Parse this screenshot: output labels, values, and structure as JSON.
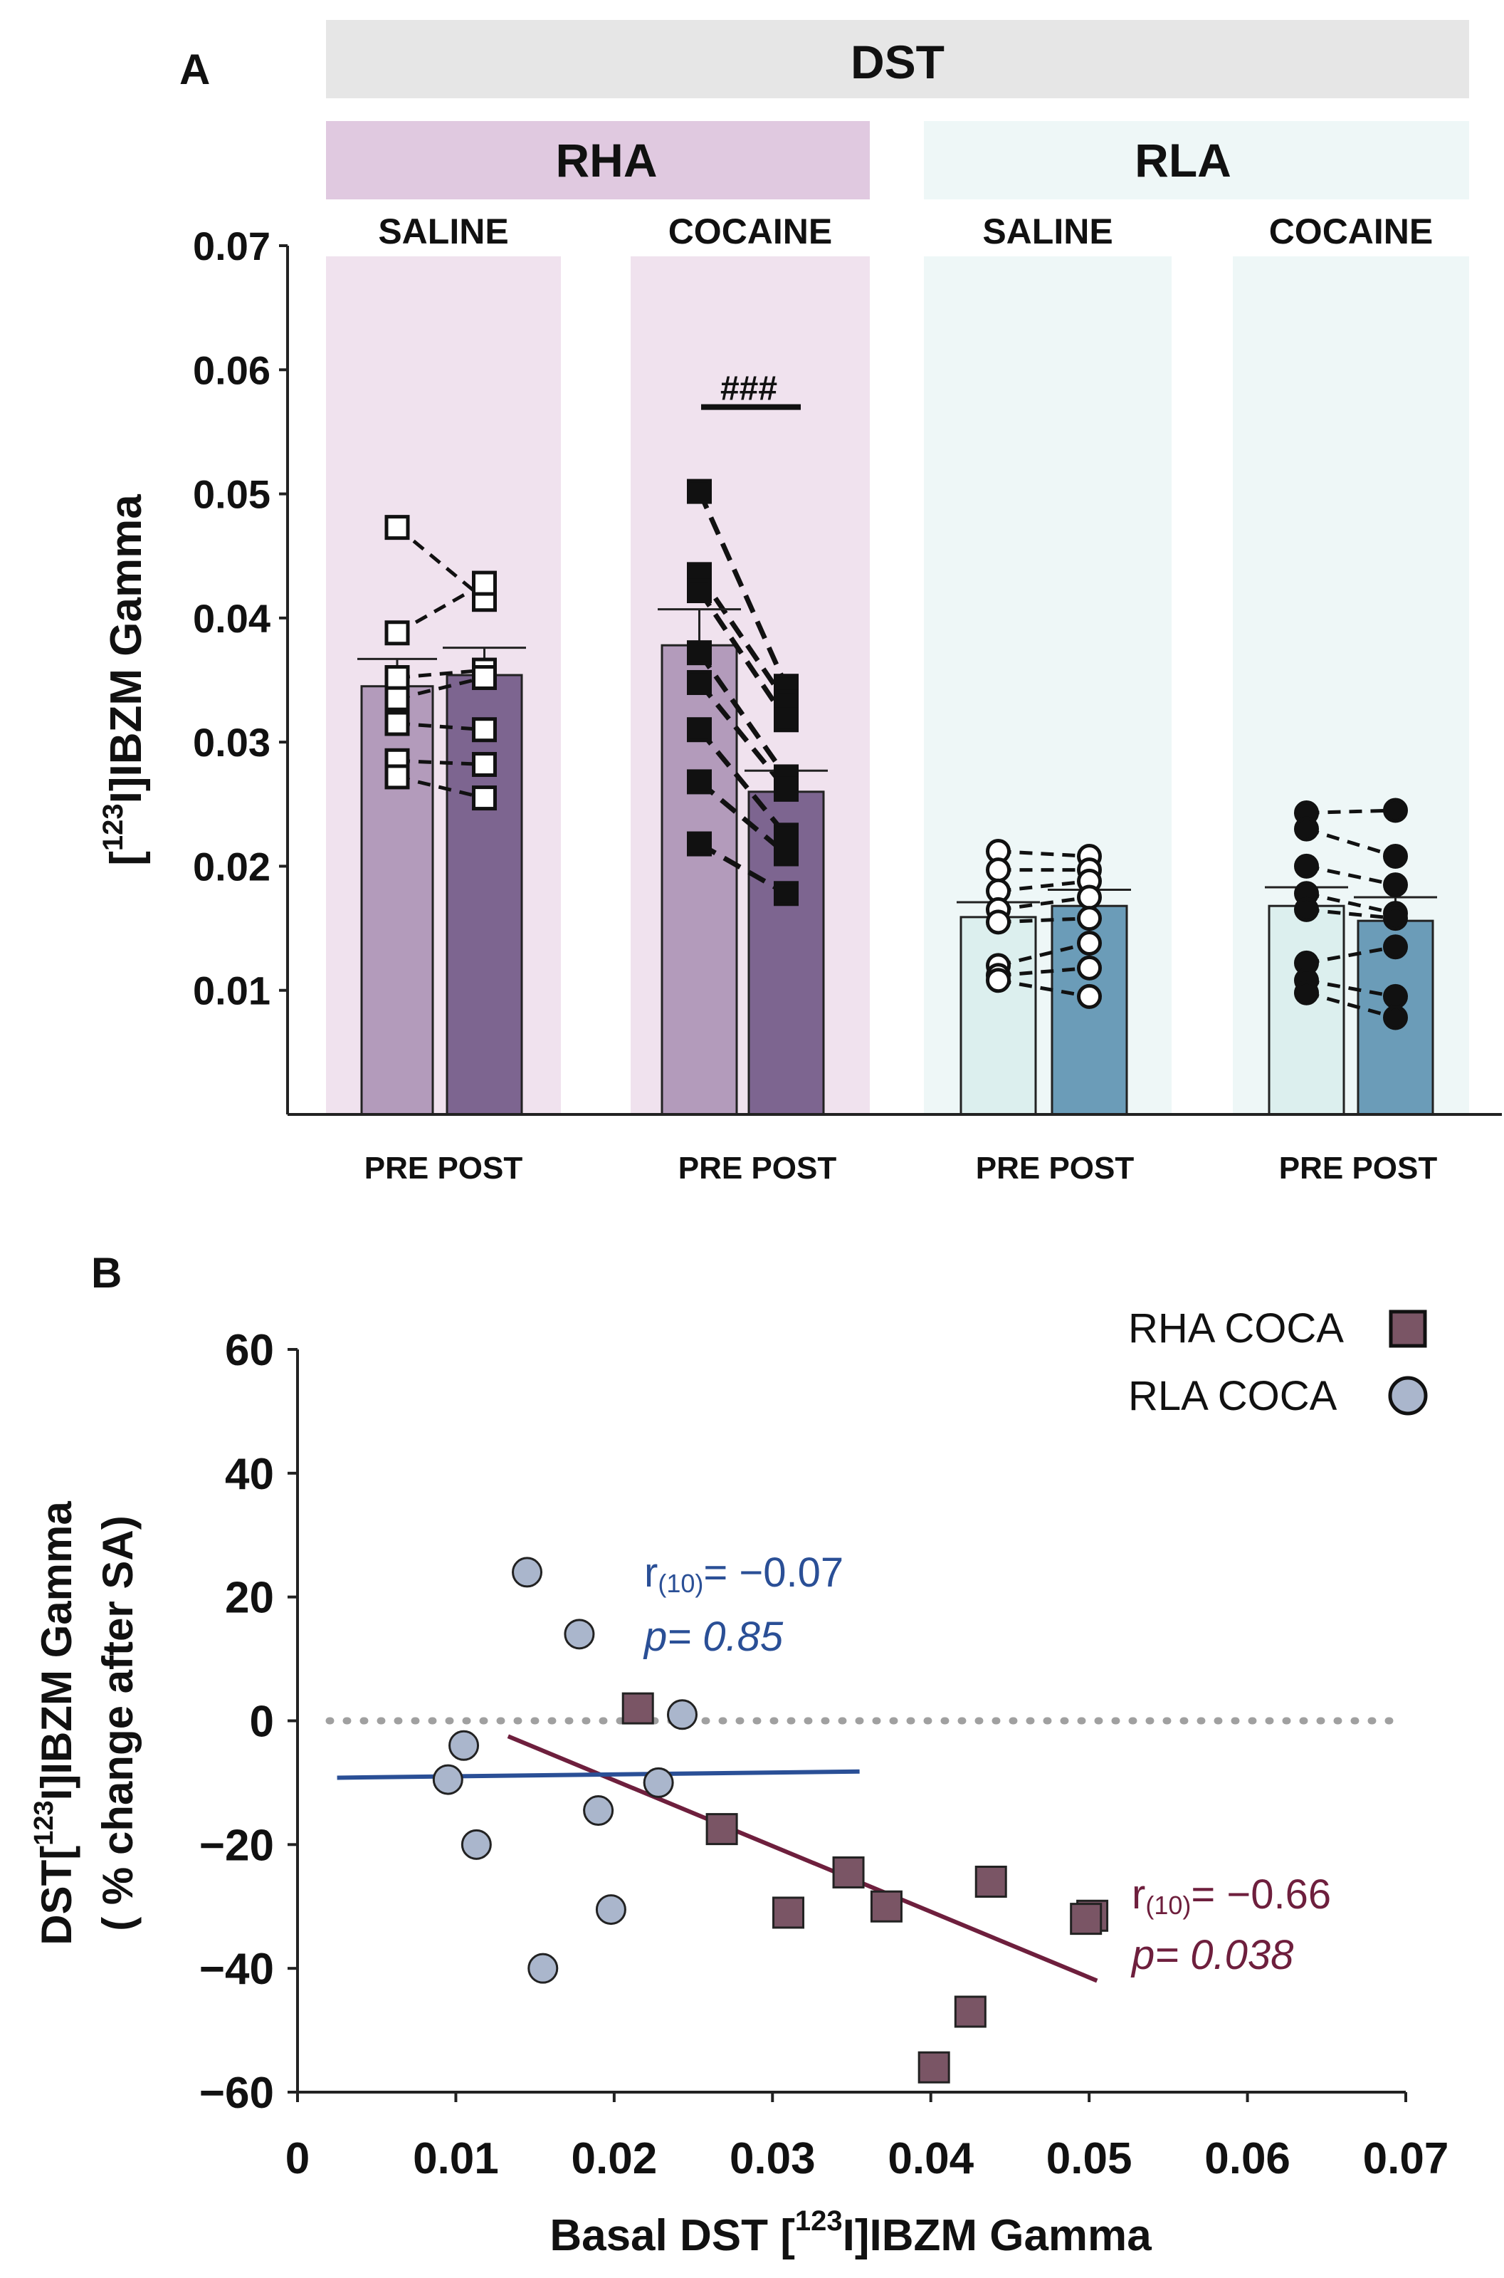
{
  "colors": {
    "rha_bg_light": "#f0e2ee",
    "rha_header": "#e0c9e0",
    "rla_bg_light": "#eef7f7",
    "dst_header": "#e6e6e6",
    "rha_pre": "#b39bbb",
    "rha_post": "#7d6590",
    "rla_pre": "#dcefee",
    "rla_post": "#6b9cb8",
    "rha_coca_marker": "#7a5565",
    "rla_coca_marker": "#aab6cc",
    "rha_fit": "#6e1f3d",
    "rla_fit": "#2a4f96",
    "zero_line": "#a0a0a0"
  },
  "panel_a": {
    "letter": "A",
    "top_header": "DST",
    "groups": [
      {
        "label": "RHA"
      },
      {
        "label": "RLA"
      }
    ],
    "ylabel_prefix": "[",
    "ylabel_sup": "123",
    "ylabel_suffix": "I]IBZM Gamma",
    "y_ticks": [
      "0.07",
      "0.06",
      "0.05",
      "0.04",
      "0.03",
      "0.02",
      "0.01"
    ],
    "x_tick_label": "PRE POST",
    "significance": "###"
  },
  "panel_b": {
    "letter": "B",
    "ylabel_line1_prefix": "DST[",
    "ylabel_line1_sup": "123",
    "ylabel_line1_suffix": "I]IBZM Gamma",
    "ylabel_line2": "( % change after SA)",
    "xlabel_prefix": "Basal  DST  [",
    "xlabel_sup": "123",
    "xlabel_suffix": "I]IBZM Gamma",
    "x_ticks": [
      "0",
      "0.01",
      "0.02",
      "0.03",
      "0.04",
      "0.05",
      "0.06",
      "0.07"
    ],
    "y_ticks": [
      "60",
      "40",
      "20",
      "0",
      "−20",
      "−40",
      "−60"
    ],
    "legend": [
      {
        "label": "RHA COCA",
        "marker": "square"
      },
      {
        "label": "RLA  COCA",
        "marker": "circle"
      }
    ],
    "rla_stat_r_prefix": "r",
    "rla_stat_r_sub": "(10)",
    "rla_stat_r_value": "= −0.07",
    "rla_stat_p": "p= 0.85",
    "rha_stat_r_prefix": "r",
    "rha_stat_r_sub": "(10)",
    "rha_stat_r_value": "= −0.66",
    "rha_stat_p": "p= 0.038"
  },
  "chart_data": [
    {
      "type": "bar",
      "title": "DST",
      "ylabel": "[123I]IBZM Gamma",
      "ylim": [
        0,
        0.07
      ],
      "y_ticks": [
        0.01,
        0.02,
        0.03,
        0.04,
        0.05,
        0.06,
        0.07
      ],
      "categories": [
        {
          "group": "RHA",
          "treatment": "SALINE",
          "marker": "open-square",
          "pre_mean": 0.0345,
          "pre_sem": 0.0022,
          "post_mean": 0.0354,
          "post_sem": 0.0022,
          "pairs": [
            [
              0.0473,
              0.0415
            ],
            [
              0.0388,
              0.0428
            ],
            [
              0.0352,
              0.0358
            ],
            [
              0.0335,
              0.0352
            ],
            [
              0.0315,
              0.031
            ],
            [
              0.0285,
              0.0282
            ],
            [
              0.0272,
              0.0255
            ]
          ]
        },
        {
          "group": "RHA",
          "treatment": "COCAINE",
          "marker": "filled-square",
          "pre_mean": 0.0378,
          "pre_sem": 0.0029,
          "post_mean": 0.026,
          "post_sem": 0.0017,
          "pairs": [
            [
              0.0502,
              0.0345
            ],
            [
              0.0435,
              0.0332
            ],
            [
              0.0422,
              0.0318
            ],
            [
              0.0372,
              0.0272
            ],
            [
              0.0348,
              0.0262
            ],
            [
              0.031,
              0.0225
            ],
            [
              0.0268,
              0.021
            ],
            [
              0.0218,
              0.0178
            ]
          ]
        },
        {
          "group": "RLA",
          "treatment": "SALINE",
          "marker": "open-circle",
          "pre_mean": 0.0159,
          "pre_sem": 0.0012,
          "post_mean": 0.0168,
          "post_sem": 0.0013,
          "pairs": [
            [
              0.0212,
              0.0208
            ],
            [
              0.0197,
              0.0197
            ],
            [
              0.018,
              0.0188
            ],
            [
              0.0165,
              0.0175
            ],
            [
              0.0155,
              0.0158
            ],
            [
              0.012,
              0.0138
            ],
            [
              0.0112,
              0.0118
            ],
            [
              0.0108,
              0.0095
            ]
          ]
        },
        {
          "group": "RLA",
          "treatment": "COCAINE",
          "marker": "filled-circle",
          "pre_mean": 0.0168,
          "pre_sem": 0.0015,
          "post_mean": 0.0156,
          "post_sem": 0.0019,
          "pairs": [
            [
              0.0243,
              0.0245
            ],
            [
              0.023,
              0.0208
            ],
            [
              0.02,
              0.0185
            ],
            [
              0.0178,
              0.0162
            ],
            [
              0.0165,
              0.0158
            ],
            [
              0.0122,
              0.0135
            ],
            [
              0.0108,
              0.0095
            ],
            [
              0.0098,
              0.0078
            ]
          ]
        }
      ],
      "group_headers": [
        "RHA",
        "RLA"
      ],
      "treatment_labels": [
        "SALINE",
        "COCAINE",
        "SALINE",
        "COCAINE"
      ],
      "significance": {
        "label": "###",
        "category_index": 1,
        "y": 0.057
      }
    },
    {
      "type": "scatter",
      "xlabel": "Basal  DST  [123I]IBZM Gamma",
      "ylabel": "DST[123I]IBZM Gamma ( % change after SA)",
      "xlim": [
        0,
        0.07
      ],
      "ylim": [
        -60,
        60
      ],
      "x_ticks": [
        0,
        0.01,
        0.02,
        0.03,
        0.04,
        0.05,
        0.06,
        0.07
      ],
      "y_ticks": [
        60,
        40,
        20,
        0,
        -20,
        -40,
        -60
      ],
      "reference_line_y": 0,
      "series": [
        {
          "name": "RHA COCA",
          "marker": "square",
          "points": [
            [
              0.0215,
              2
            ],
            [
              0.0268,
              -17.5
            ],
            [
              0.031,
              -31
            ],
            [
              0.0348,
              -24.5
            ],
            [
              0.0372,
              -30
            ],
            [
              0.0402,
              -56
            ],
            [
              0.0425,
              -47
            ],
            [
              0.0438,
              -26
            ],
            [
              0.0502,
              -31.5
            ],
            [
              0.0498,
              -32
            ]
          ],
          "fit": {
            "x": [
              0.0133,
              0.0505
            ],
            "y": [
              -2.5,
              -42
            ],
            "r": "r(10)= −0.66",
            "p": "p= 0.038"
          }
        },
        {
          "name": "RLA COCA",
          "marker": "circle",
          "points": [
            [
              0.0145,
              24
            ],
            [
              0.0178,
              14
            ],
            [
              0.0243,
              1
            ],
            [
              0.0105,
              -4
            ],
            [
              0.0095,
              -9.5
            ],
            [
              0.0228,
              -10
            ],
            [
              0.019,
              -14.5
            ],
            [
              0.0113,
              -20
            ],
            [
              0.0198,
              -30.5
            ],
            [
              0.0155,
              -40
            ]
          ],
          "fit": {
            "x": [
              0.0025,
              0.0355
            ],
            "y": [
              -9.2,
              -8.2
            ],
            "r": "r(10)= −0.07",
            "p": "p= 0.85"
          }
        }
      ],
      "legend": [
        "RHA COCA",
        "RLA  COCA"
      ],
      "legend_position": "top-right"
    }
  ]
}
